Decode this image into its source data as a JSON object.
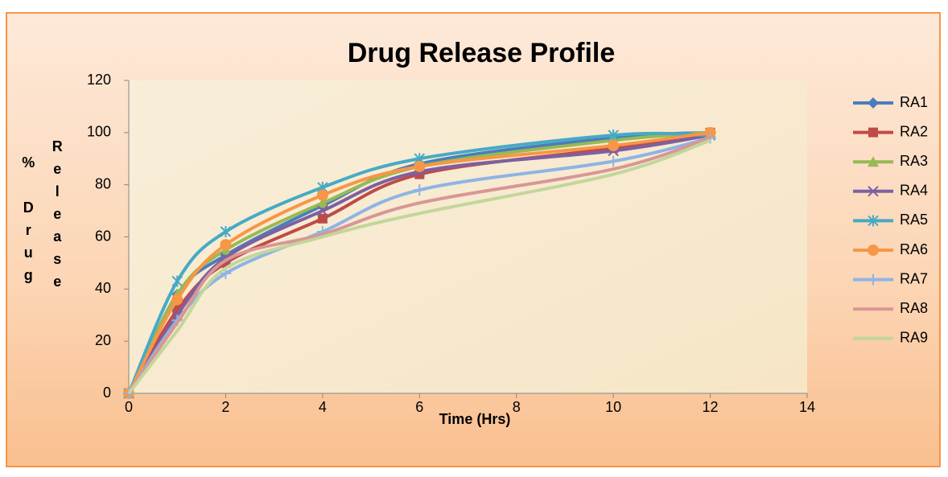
{
  "chart_data": {
    "type": "line",
    "title": "Drug Release Profile",
    "x_label": "Time (Hrs)",
    "y_label": [
      "% Drug",
      "Release"
    ],
    "x": [
      0,
      1,
      2,
      4,
      6,
      10,
      12
    ],
    "series": [
      {
        "name": "RA1",
        "color": "#4a7ebb",
        "marker": "diamond",
        "values": [
          0,
          38,
          53,
          72,
          88,
          98,
          100
        ]
      },
      {
        "name": "RA2",
        "color": "#be4b48",
        "marker": "square",
        "values": [
          0,
          32,
          50,
          67,
          84,
          94,
          100
        ]
      },
      {
        "name": "RA3",
        "color": "#98b954",
        "marker": "triangle",
        "values": [
          0,
          38,
          55,
          73,
          87,
          97,
          100
        ]
      },
      {
        "name": "RA4",
        "color": "#7d60a0",
        "marker": "x",
        "values": [
          0,
          30,
          52,
          70,
          85,
          93,
          99
        ]
      },
      {
        "name": "RA5",
        "color": "#46aac5",
        "marker": "star",
        "values": [
          0,
          43,
          62,
          79,
          90,
          99,
          99
        ]
      },
      {
        "name": "RA6",
        "color": "#f79646",
        "marker": "circle",
        "values": [
          0,
          36,
          57,
          76,
          87,
          95,
          100
        ]
      },
      {
        "name": "RA7",
        "color": "#8eb4e3",
        "marker": "plus",
        "values": [
          0,
          28,
          46,
          62,
          78,
          89,
          98
        ]
      },
      {
        "name": "RA8",
        "color": "#d99694",
        "marker": "none",
        "values": [
          0,
          27,
          51,
          61,
          73,
          86,
          98
        ]
      },
      {
        "name": "RA9",
        "color": "#c3d69b",
        "marker": "none",
        "values": [
          0,
          24,
          48,
          60,
          69,
          84,
          97
        ]
      }
    ],
    "xlim": [
      0,
      14
    ],
    "xticks": [
      0,
      2,
      4,
      6,
      8,
      10,
      12,
      14
    ],
    "ylim": [
      0,
      120
    ],
    "yticks": [
      0,
      20,
      40,
      60,
      80,
      100,
      120
    ],
    "smooth": true,
    "grid": false,
    "legend": "right"
  }
}
